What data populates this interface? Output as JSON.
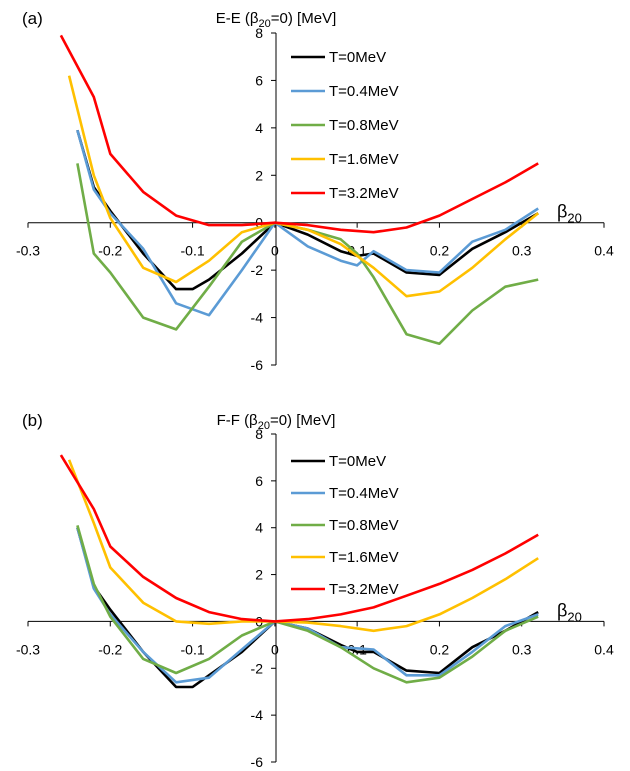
{
  "chart_data": [
    {
      "panel_label": "(a)",
      "type": "line",
      "ylabel_main": "E-E (β",
      "ylabel_sub": "20",
      "ylabel_end": "=0) [MeV]",
      "xlabel_main": "β",
      "xlabel_sub": "20",
      "xlim": [
        -0.3,
        0.4
      ],
      "ylim": [
        -6,
        8
      ],
      "xticks": [
        -0.3,
        -0.2,
        -0.1,
        0,
        0.1,
        0.2,
        0.3,
        0.4
      ],
      "yticks": [
        -6,
        -4,
        -2,
        0,
        2,
        4,
        6,
        8
      ],
      "xtick_labels": [
        "-0.3",
        "-0.2",
        "-0.1",
        "0",
        "0.1",
        "0.2",
        "0.3",
        "0.4"
      ],
      "ytick_labels": [
        "-6",
        "-4",
        "-2",
        "0",
        "2",
        "4",
        "6",
        "8"
      ],
      "legend_position": "top-center",
      "series": [
        {
          "name": "T=0MeV",
          "color": "#000000",
          "x": [
            -0.24,
            -0.22,
            -0.2,
            -0.16,
            -0.12,
            -0.1,
            -0.08,
            -0.04,
            0,
            0.04,
            0.08,
            0.1,
            0.12,
            0.16,
            0.2,
            0.24,
            0.28,
            0.32
          ],
          "y": [
            3.9,
            1.5,
            0.5,
            -1.3,
            -2.8,
            -2.8,
            -2.4,
            -1.3,
            0,
            -0.5,
            -1.2,
            -1.4,
            -1.3,
            -2.1,
            -2.2,
            -1.1,
            -0.4,
            0.4
          ]
        },
        {
          "name": "T=0.4MeV",
          "color": "#5b9bd5",
          "x": [
            -0.24,
            -0.22,
            -0.2,
            -0.16,
            -0.12,
            -0.08,
            -0.04,
            0,
            0.04,
            0.08,
            0.1,
            0.12,
            0.16,
            0.2,
            0.24,
            0.28,
            0.32
          ],
          "y": [
            3.9,
            1.4,
            0.4,
            -1.1,
            -3.4,
            -3.9,
            -2.0,
            0,
            -1.0,
            -1.6,
            -1.8,
            -1.2,
            -2.0,
            -2.1,
            -0.8,
            -0.3,
            0.6
          ]
        },
        {
          "name": "T=0.8MeV",
          "color": "#70ad47",
          "x": [
            -0.24,
            -0.22,
            -0.2,
            -0.16,
            -0.12,
            -0.08,
            -0.04,
            0,
            0.04,
            0.08,
            0.1,
            0.12,
            0.16,
            0.2,
            0.24,
            0.28,
            0.32
          ],
          "y": [
            2.5,
            -1.3,
            -2.1,
            -4.0,
            -4.5,
            -2.7,
            -0.8,
            0,
            -0.3,
            -0.7,
            -1.3,
            -2.3,
            -4.7,
            -5.1,
            -3.7,
            -2.7,
            -2.4
          ]
        },
        {
          "name": "T=1.6MeV",
          "color": "#ffc000",
          "x": [
            -0.25,
            -0.22,
            -0.2,
            -0.16,
            -0.12,
            -0.08,
            -0.04,
            0,
            0.04,
            0.08,
            0.12,
            0.16,
            0.2,
            0.24,
            0.28,
            0.32
          ],
          "y": [
            6.2,
            2.0,
            0.2,
            -1.9,
            -2.5,
            -1.6,
            -0.4,
            0,
            -0.3,
            -0.9,
            -1.9,
            -3.1,
            -2.9,
            -1.9,
            -0.7,
            0.4
          ]
        },
        {
          "name": "T=3.2MeV",
          "color": "#ff0000",
          "x": [
            -0.26,
            -0.22,
            -0.2,
            -0.16,
            -0.12,
            -0.08,
            -0.04,
            0,
            0.04,
            0.08,
            0.12,
            0.16,
            0.2,
            0.24,
            0.28,
            0.32
          ],
          "y": [
            7.9,
            5.3,
            2.9,
            1.3,
            0.3,
            -0.1,
            -0.1,
            0,
            -0.1,
            -0.3,
            -0.4,
            -0.2,
            0.3,
            1.0,
            1.7,
            2.5
          ]
        }
      ]
    },
    {
      "panel_label": "(b)",
      "type": "line",
      "ylabel_main": "F-F (β",
      "ylabel_sub": "20",
      "ylabel_end": "=0) [MeV]",
      "xlabel_main": "β",
      "xlabel_sub": "20",
      "xlim": [
        -0.3,
        0.4
      ],
      "ylim": [
        -6,
        8
      ],
      "xticks": [
        -0.3,
        -0.2,
        -0.1,
        0,
        0.1,
        0.2,
        0.3,
        0.4
      ],
      "yticks": [
        -6,
        -4,
        -2,
        0,
        2,
        4,
        6,
        8
      ],
      "xtick_labels": [
        "-0.3",
        "-0.2",
        "-0.1",
        "0",
        "0.1",
        "0.2",
        "0.3",
        "0.4"
      ],
      "ytick_labels": [
        "-6",
        "-4",
        "-2",
        "0",
        "2",
        "4",
        "6",
        "8"
      ],
      "legend_position": "top-center",
      "series": [
        {
          "name": "T=0MeV",
          "color": "#000000",
          "x": [
            -0.24,
            -0.22,
            -0.2,
            -0.16,
            -0.12,
            -0.1,
            -0.08,
            -0.04,
            0,
            0.04,
            0.08,
            0.1,
            0.12,
            0.16,
            0.2,
            0.24,
            0.28,
            0.32
          ],
          "y": [
            4.0,
            1.5,
            0.5,
            -1.3,
            -2.8,
            -2.8,
            -2.3,
            -1.3,
            0,
            -0.3,
            -1.0,
            -1.3,
            -1.3,
            -2.1,
            -2.2,
            -1.1,
            -0.4,
            0.4
          ]
        },
        {
          "name": "T=0.4MeV",
          "color": "#5b9bd5",
          "x": [
            -0.24,
            -0.22,
            -0.2,
            -0.16,
            -0.12,
            -0.08,
            -0.04,
            0,
            0.04,
            0.08,
            0.12,
            0.16,
            0.2,
            0.24,
            0.28,
            0.32
          ],
          "y": [
            4.0,
            1.4,
            0.3,
            -1.3,
            -2.6,
            -2.4,
            -1.2,
            0,
            -0.3,
            -1.1,
            -1.2,
            -2.3,
            -2.3,
            -1.3,
            -0.2,
            0.3
          ]
        },
        {
          "name": "T=0.8MeV",
          "color": "#70ad47",
          "x": [
            -0.24,
            -0.22,
            -0.2,
            -0.16,
            -0.12,
            -0.08,
            -0.04,
            0,
            0.04,
            0.08,
            0.12,
            0.16,
            0.2,
            0.24,
            0.28,
            0.32
          ],
          "y": [
            4.1,
            1.6,
            0.2,
            -1.6,
            -2.2,
            -1.6,
            -0.6,
            0,
            -0.4,
            -1.1,
            -2.0,
            -2.6,
            -2.4,
            -1.5,
            -0.4,
            0.2
          ]
        },
        {
          "name": "T=1.6MeV",
          "color": "#ffc000",
          "x": [
            -0.25,
            -0.22,
            -0.2,
            -0.16,
            -0.12,
            -0.08,
            -0.04,
            0,
            0.04,
            0.08,
            0.12,
            0.16,
            0.2,
            0.24,
            0.28,
            0.32
          ],
          "y": [
            6.9,
            4.2,
            2.3,
            0.8,
            0.0,
            -0.1,
            0.0,
            0,
            -0.05,
            -0.2,
            -0.4,
            -0.2,
            0.3,
            1.0,
            1.8,
            2.7
          ]
        },
        {
          "name": "T=3.2MeV",
          "color": "#ff0000",
          "x": [
            -0.26,
            -0.22,
            -0.2,
            -0.16,
            -0.12,
            -0.08,
            -0.04,
            0,
            0.04,
            0.08,
            0.12,
            0.16,
            0.2,
            0.24,
            0.28,
            0.32
          ],
          "y": [
            7.1,
            4.8,
            3.2,
            1.9,
            1.0,
            0.4,
            0.1,
            0,
            0.1,
            0.3,
            0.6,
            1.1,
            1.6,
            2.2,
            2.9,
            3.7
          ]
        }
      ]
    }
  ]
}
